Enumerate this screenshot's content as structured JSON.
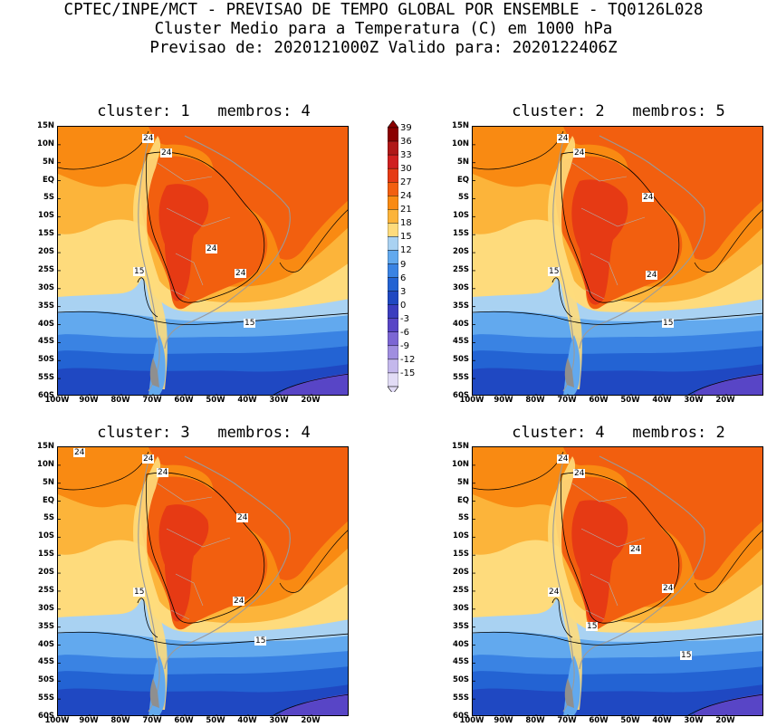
{
  "header": {
    "line1": "CPTEC/INPE/MCT - PREVISAO DE TEMPO GLOBAL POR ENSEMBLE - TQ0126L028",
    "line2": "Cluster Medio para a Temperatura (C) em 1000 hPa",
    "line3": "Previsao de: 2020121000Z   Valido para: 2020122406Z"
  },
  "lat_labels": [
    "15N",
    "10N",
    "5N",
    "EQ",
    "5S",
    "10S",
    "15S",
    "20S",
    "25S",
    "30S",
    "35S",
    "40S",
    "45S",
    "50S",
    "55S",
    "60S"
  ],
  "lon_labels": [
    "100W",
    "90W",
    "80W",
    "70W",
    "60W",
    "50W",
    "40W",
    "30W",
    "20W"
  ],
  "colorbar": {
    "ticks": [
      "39",
      "36",
      "33",
      "30",
      "27",
      "24",
      "21",
      "18",
      "15",
      "12",
      "9",
      "6",
      "3",
      "0",
      "-3",
      "-6",
      "-9",
      "-12",
      "-15"
    ],
    "colors": [
      "#8b0000",
      "#b01818",
      "#d02020",
      "#e63a14",
      "#f25f0f",
      "#f98a12",
      "#fcb43a",
      "#fedb7c",
      "#a9d2f2",
      "#62a9ee",
      "#3a83e3",
      "#2363d3",
      "#1f48c2",
      "#3b3dbf",
      "#5845c6",
      "#7c66d4",
      "#a08ee0",
      "#c4b8ec",
      "#e2dcf6"
    ]
  },
  "panels": [
    {
      "title": "cluster: 1   membros: 4",
      "labels": [
        "24",
        "24",
        "24",
        "24",
        "15",
        "15"
      ]
    },
    {
      "title": "cluster: 2   membros: 5",
      "labels": [
        "24",
        "24",
        "24",
        "24",
        "15",
        "15"
      ]
    },
    {
      "title": "cluster: 3   membros: 4",
      "labels": [
        "24",
        "24",
        "24",
        "24",
        "24",
        "15",
        "15"
      ]
    },
    {
      "title": "cluster: 4   membros: 2",
      "labels": [
        "24",
        "24",
        "24",
        "24",
        "24",
        "15",
        "15"
      ]
    }
  ]
}
